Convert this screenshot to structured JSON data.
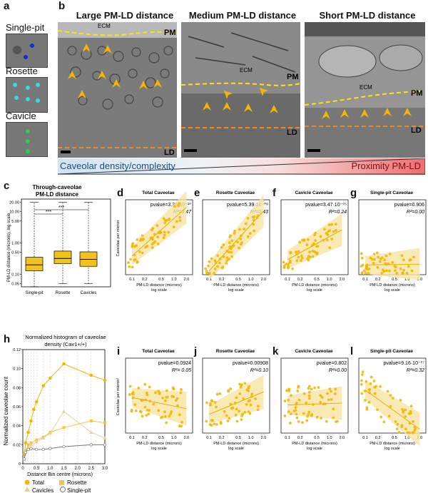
{
  "figure": {
    "panel_labels": [
      "a",
      "b",
      "c",
      "d",
      "e",
      "f",
      "g",
      "h",
      "i",
      "j",
      "k",
      "l"
    ],
    "a": {
      "thumbs": [
        "Single-pit",
        "Rosette",
        "Cavicle"
      ]
    },
    "b": {
      "titles": [
        "Large PM-LD distance",
        "Medium PM-LD distance",
        "Short PM-LD distance"
      ],
      "ecm": "ECM",
      "pm": "PM",
      "ld": "LD",
      "gradient_left": "Caveolar density/complexity",
      "gradient_right": "Proximity PM-LD"
    },
    "c": {
      "title_line1": "Through-caveolae",
      "title_line2": "PM-LD distance",
      "ylabel": "PM-LD distance (microns), log scale",
      "categories": [
        "Single-pit",
        "Rosette",
        "Cavicles"
      ],
      "sig": "***",
      "yticks": [
        "0.05",
        "0.10",
        "0.50",
        "1.00",
        "5.00",
        "10.00",
        "20.00"
      ]
    },
    "scatter_titles": [
      "Total Caveolae",
      "Rosette Caveolae",
      "Cavicle Caveolae",
      "Single-pit Caveolae"
    ],
    "d_row": {
      "pvalues": [
        "pvalue=3.35·10⁻¹⁰",
        "pvalue=5.39·10⁻⁰⁹",
        "pvalue=3.47·10⁻⁰⁵",
        "pvalue=0.906"
      ],
      "r2": [
        "R²=0.47",
        "R²=0.43",
        "R²=0.24",
        "R²=0.00"
      ],
      "ylabel": "Caveolae per micron"
    },
    "i_row": {
      "pvalues": [
        "pvalue=0.0924",
        "pvalue=0.00908",
        "pvalue=0.802",
        "pvalue=9.16·10⁻⁰⁷"
      ],
      "r2": [
        "R²= 0.05",
        "R²=0.10",
        "R²=0.00",
        "R²=0.32"
      ],
      "ylabel": "Caveolae per micron²"
    },
    "xlabel_line1": "PM-LD distance (microns)",
    "xlabel_line2": "log scale",
    "xticks": [
      "0.1",
      "0.2",
      "0.5",
      "1.0",
      "2.0"
    ],
    "h": {
      "title_line1": "Normalized histogram of caveolae",
      "title_line2": "density (Cav1+/+)",
      "ylabel": "Normalized caveolae count",
      "xlabel": "Distance Bin centre (microns)",
      "yticks": [
        "0",
        "0.02",
        "0.04",
        "0.06",
        "0.08",
        "0.10",
        "0.12"
      ],
      "xticks": [
        "0",
        "0.5",
        "1.0",
        "1.5",
        "2.0",
        "2.5",
        "3.0"
      ],
      "legend": [
        "Total",
        "Rosette",
        "Cavicles",
        "Single-pit"
      ]
    }
  },
  "chart_data": [
    {
      "type": "line",
      "title": "Normalized histogram of caveolae density (Cav1+/+)",
      "xlabel": "Distance Bin centre (microns)",
      "ylabel": "Normalized caveolae count",
      "xlim": [
        0,
        3.0
      ],
      "ylim": [
        0,
        0.12
      ],
      "series": [
        {
          "name": "Total",
          "color": "#f2b705",
          "x": [
            0.05,
            0.1,
            0.2,
            0.3,
            0.4,
            0.5,
            0.75,
            1.0,
            1.5,
            2.5,
            3.0
          ],
          "y": [
            0.01,
            0.022,
            0.033,
            0.045,
            0.057,
            0.065,
            0.082,
            0.09,
            0.105,
            0.093,
            0.088
          ]
        },
        {
          "name": "Rosette",
          "color": "#f4c542",
          "x": [
            0.05,
            0.1,
            0.2,
            0.3,
            0.5,
            0.75,
            1.0,
            1.5,
            2.5,
            3.0
          ],
          "y": [
            0.005,
            0.014,
            0.02,
            0.022,
            0.025,
            0.028,
            0.033,
            0.038,
            0.045,
            0.043
          ]
        },
        {
          "name": "Cavicles",
          "color": "#e8cf9a",
          "x": [
            0.05,
            0.1,
            0.2,
            0.3,
            0.5,
            0.75,
            1.0,
            1.5,
            2.5,
            3.0
          ],
          "y": [
            0.005,
            0.012,
            0.017,
            0.02,
            0.023,
            0.027,
            0.032,
            0.055,
            0.033,
            0.027
          ]
        },
        {
          "name": "Single-pit",
          "color": "#777777",
          "x": [
            0.05,
            0.1,
            0.2,
            0.3,
            0.5,
            0.75,
            1.0,
            1.5,
            2.5,
            3.0
          ],
          "y": [
            0.005,
            0.012,
            0.015,
            0.016,
            0.015,
            0.015,
            0.016,
            0.018,
            0.02,
            0.02
          ]
        }
      ]
    },
    {
      "type": "box",
      "title": "Through-caveolae PM-LD distance",
      "categories": [
        "Single-pit",
        "Rosette",
        "Cavicles"
      ],
      "q1": [
        0.13,
        0.22,
        0.18
      ],
      "median": [
        0.2,
        0.32,
        0.3
      ],
      "q3": [
        0.35,
        0.55,
        0.52
      ],
      "whisker_low": [
        0.04,
        0.05,
        0.05
      ],
      "whisker_high": [
        20,
        20,
        20
      ]
    }
  ]
}
